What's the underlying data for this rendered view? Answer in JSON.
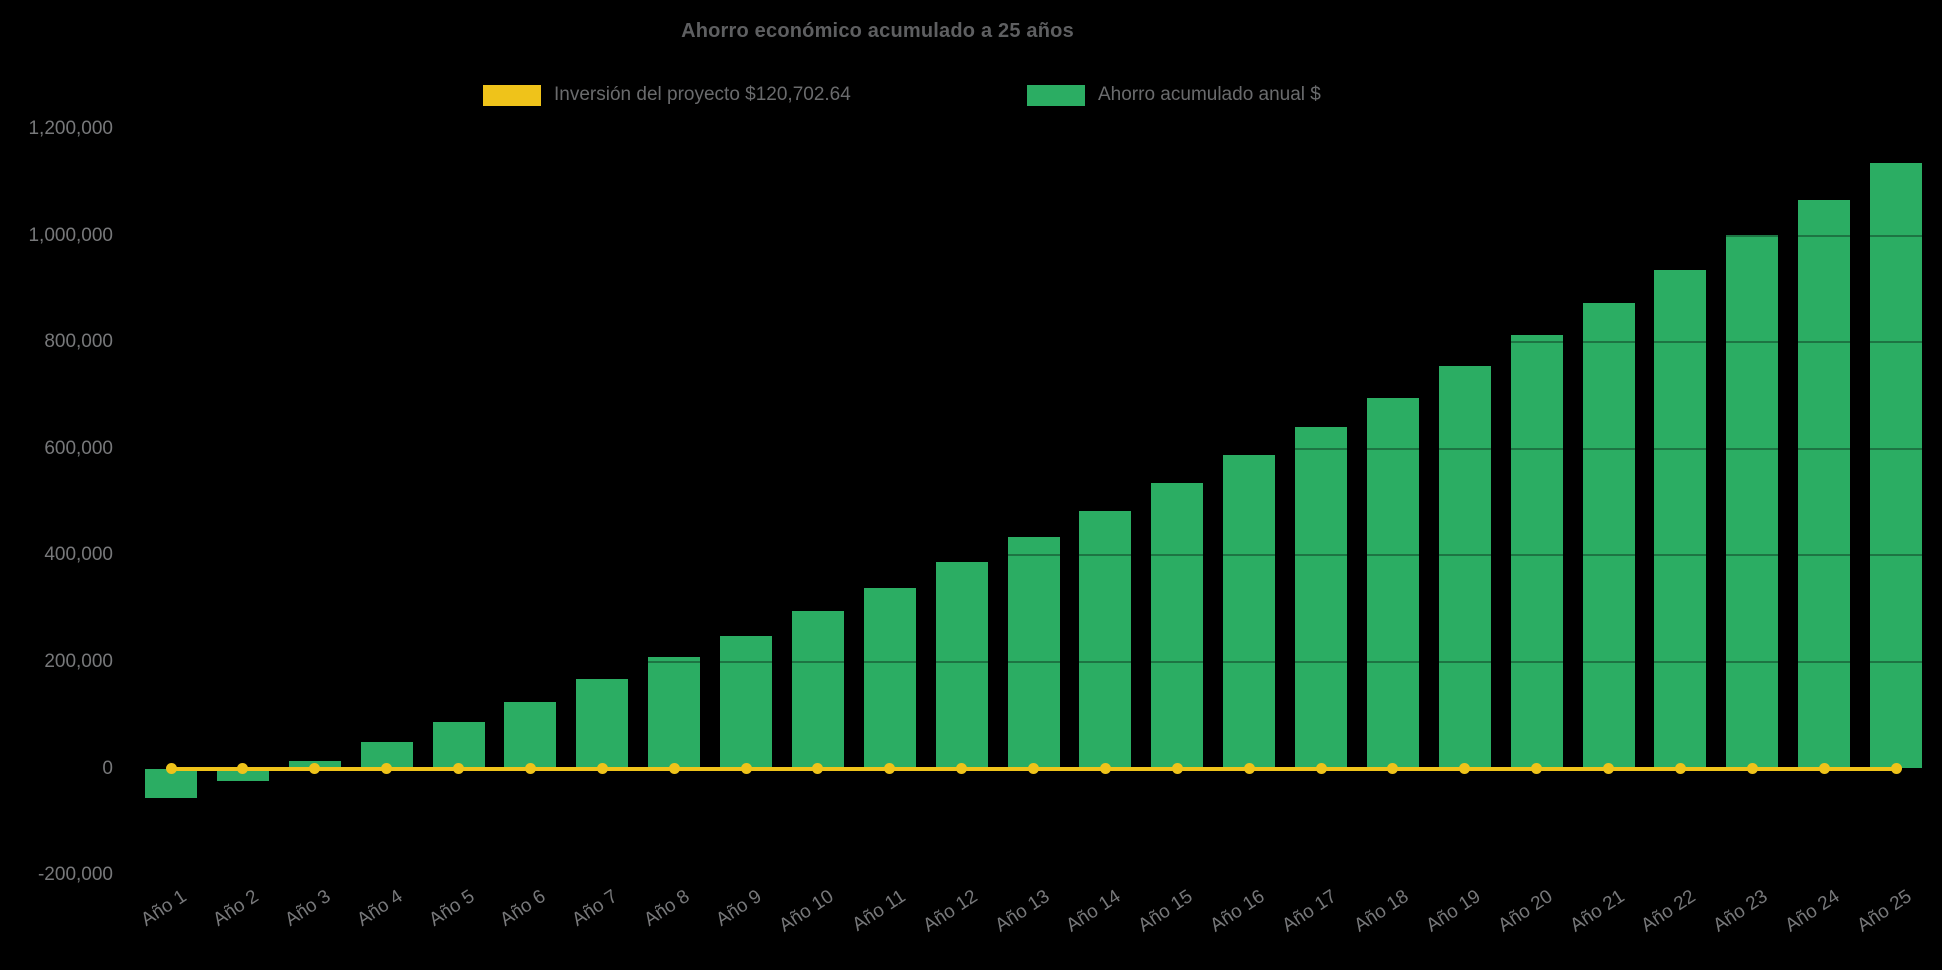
{
  "title": "Ahorro económico acumulado a 25 años",
  "legend": {
    "investment": {
      "label": "Inversión del proyecto $120,702.64",
      "color": "#EFC31A"
    },
    "savings": {
      "label": "Ahorro acumulado anual $",
      "color": "#2BAD63"
    }
  },
  "chart_data": {
    "type": "bar",
    "title": "Ahorro económico acumulado a 25 años",
    "categories": [
      "Año 1",
      "Año 2",
      "Año 3",
      "Año 4",
      "Año 5",
      "Año 6",
      "Año 7",
      "Año 8",
      "Año 9",
      "Año 10",
      "Año 11",
      "Año 12",
      "Año 13",
      "Año 14",
      "Año 15",
      "Año 16",
      "Año 17",
      "Año 18",
      "Año 19",
      "Año 20",
      "Año 21",
      "Año 22",
      "Año 23",
      "Año 24",
      "Año 25"
    ],
    "series": [
      {
        "name": "Ahorro acumulado anual $",
        "type": "bar",
        "color": "#2BAD63",
        "values": [
          -56000,
          -23000,
          14000,
          50000,
          87000,
          125000,
          167000,
          209000,
          249000,
          296000,
          339000,
          387000,
          434000,
          484000,
          536000,
          588000,
          641000,
          696000,
          755000,
          813000,
          873000,
          936000,
          1001000,
          1066000,
          1136000
        ]
      },
      {
        "name": "Inversión del proyecto $120,702.64",
        "type": "line",
        "color": "#EFC31A",
        "investment_amount": 120702.64,
        "values": [
          0,
          0,
          0,
          0,
          0,
          0,
          0,
          0,
          0,
          0,
          0,
          0,
          0,
          0,
          0,
          0,
          0,
          0,
          0,
          0,
          0,
          0,
          0,
          0,
          0
        ]
      }
    ],
    "xlabel": "",
    "ylabel": "",
    "y_axis": {
      "ticks": [
        -200000,
        0,
        200000,
        400000,
        600000,
        800000,
        1000000,
        1200000
      ],
      "min": -280000,
      "max": 1280000
    },
    "grid": true,
    "legend_position": "top",
    "x_label_rotation_deg": -33,
    "background": "#000000"
  }
}
